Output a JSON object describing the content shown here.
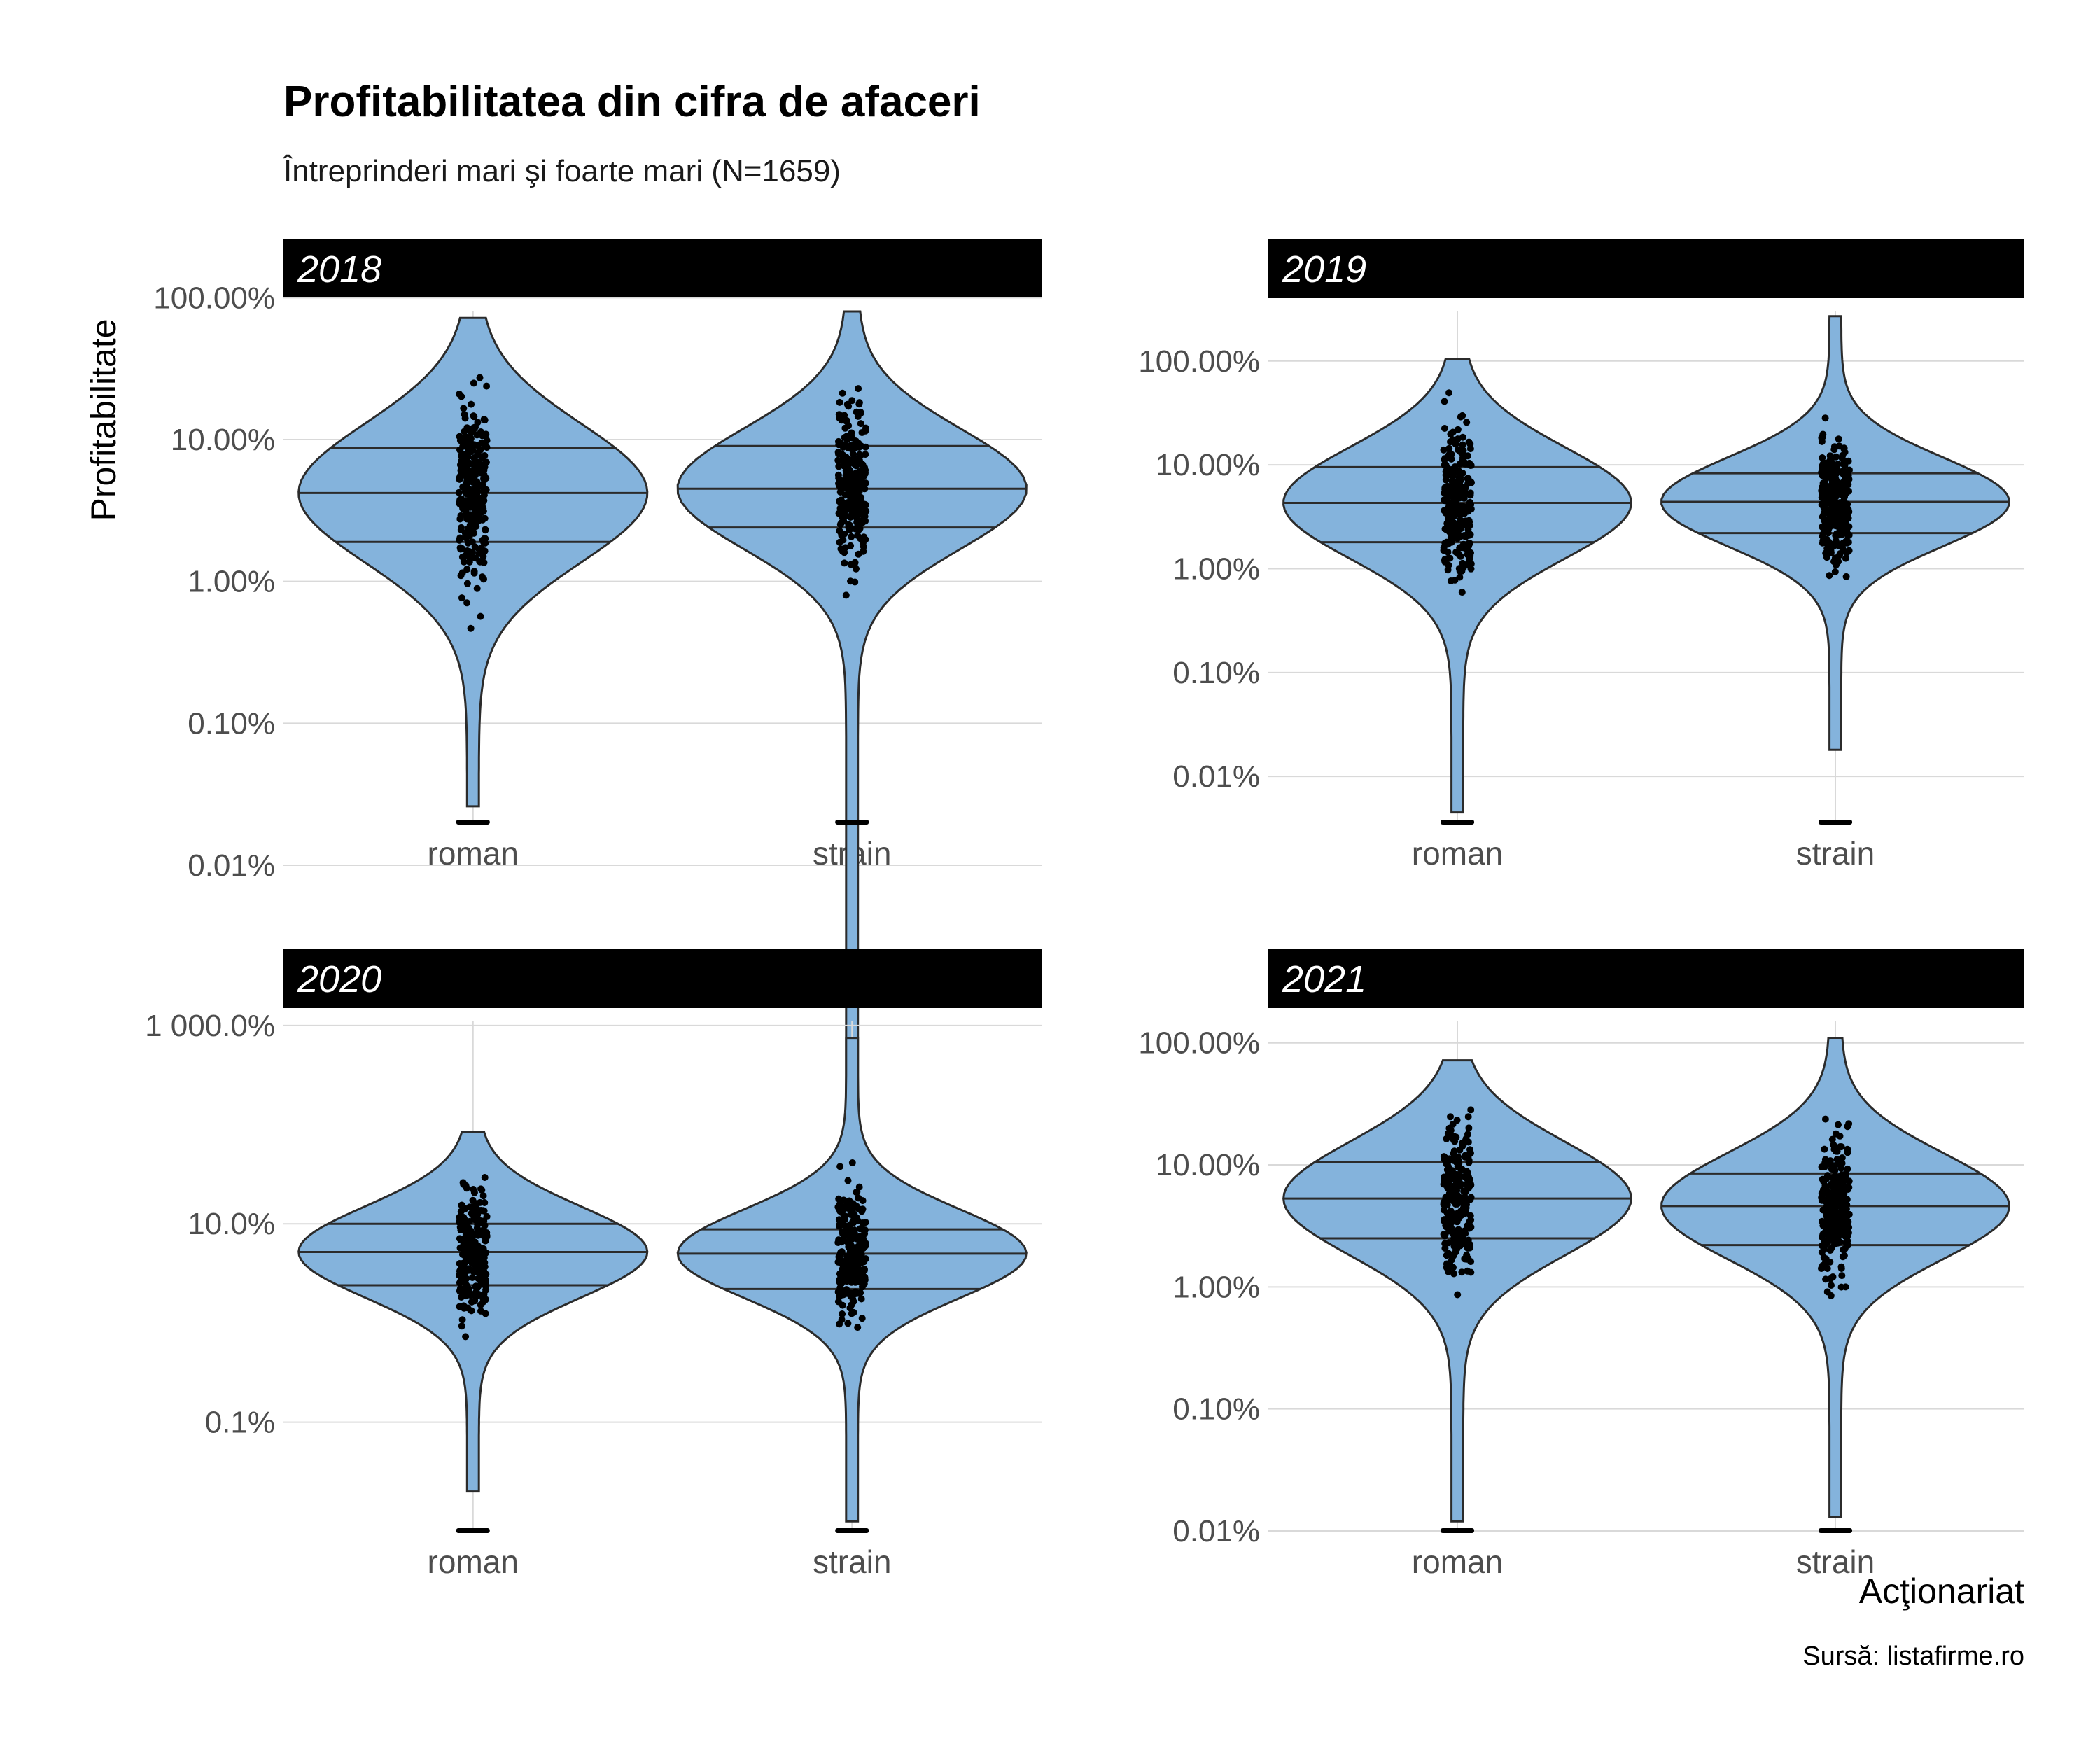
{
  "title": "Profitabilitatea din cifra de afaceri",
  "subtitle": "Întreprinderi mari şi foarte mari (N=1659)",
  "ylabel": "Profitabilitate",
  "xlabel": "Acţionariat",
  "caption": "Sursă: listafirme.ro",
  "colors": {
    "violin_fill": "#84b3dc",
    "violin_stroke": "#2b2b2b",
    "point": "#000000",
    "strip_bg": "#000000",
    "grid": "#d9d9d9"
  },
  "chart_data": [
    {
      "type": "violin",
      "facet": "2018",
      "y_scale": "log10",
      "ylim": [
        0.0002,
        0.8
      ],
      "ticks": [
        {
          "value": 1,
          "label": "100.00%"
        },
        {
          "value": 0.1,
          "label": "10.00%"
        },
        {
          "value": 0.01,
          "label": "1.00%"
        },
        {
          "value": 0.001,
          "label": "0.10%"
        },
        {
          "value": 0.0001,
          "label": "0.01%"
        }
      ],
      "categories": [
        "roman",
        "strain"
      ],
      "groups": [
        {
          "name": "roman",
          "quantiles": [
            0.019,
            0.042,
            0.087
          ],
          "min": 0.00026,
          "max": 0.72
        },
        {
          "name": "strain",
          "quantiles": [
            0.024,
            0.045,
            0.09
          ],
          "min": 2.5e-06,
          "max": 0.8
        }
      ]
    },
    {
      "type": "violin",
      "facet": "2019",
      "y_scale": "log10",
      "ylim": [
        3.6e-05,
        3
      ],
      "ticks": [
        {
          "value": 1,
          "label": "100.00%"
        },
        {
          "value": 0.1,
          "label": "10.00%"
        },
        {
          "value": 0.01,
          "label": "1.00%"
        },
        {
          "value": 0.001,
          "label": "0.10%"
        },
        {
          "value": 0.0001,
          "label": "0.01%"
        }
      ],
      "categories": [
        "roman",
        "strain"
      ],
      "groups": [
        {
          "name": "roman",
          "quantiles": [
            0.018,
            0.043,
            0.095
          ],
          "min": 4.5e-05,
          "max": 1.05
        },
        {
          "name": "strain",
          "quantiles": [
            0.022,
            0.044,
            0.083
          ],
          "min": 0.00018,
          "max": 2.7
        }
      ]
    },
    {
      "type": "violin",
      "facet": "2020",
      "y_scale": "log10",
      "ylim": [
        8e-05,
        11
      ],
      "ticks": [
        {
          "value": 10,
          "label": "1 000.0%"
        },
        {
          "value": 0.1,
          "label": "10.0%"
        },
        {
          "value": 0.001,
          "label": "0.1%"
        }
      ],
      "categories": [
        "roman",
        "strain"
      ],
      "groups": [
        {
          "name": "roman",
          "quantiles": [
            0.024,
            0.052,
            0.1
          ],
          "min": 0.0002,
          "max": 0.85
        },
        {
          "name": "strain",
          "quantiles": [
            0.022,
            0.05,
            0.088
          ],
          "min": 0.0001,
          "max": 7.5
        }
      ]
    },
    {
      "type": "violin",
      "facet": "2021",
      "y_scale": "log10",
      "ylim": [
        0.0001,
        1.5
      ],
      "ticks": [
        {
          "value": 1,
          "label": "100.00%"
        },
        {
          "value": 0.1,
          "label": "10.00%"
        },
        {
          "value": 0.01,
          "label": "1.00%"
        },
        {
          "value": 0.001,
          "label": "0.10%"
        },
        {
          "value": 0.0001,
          "label": "0.01%"
        }
      ],
      "categories": [
        "roman",
        "strain"
      ],
      "groups": [
        {
          "name": "roman",
          "quantiles": [
            0.025,
            0.053,
            0.106
          ],
          "min": 0.00012,
          "max": 0.72
        },
        {
          "name": "strain",
          "quantiles": [
            0.022,
            0.046,
            0.085
          ],
          "min": 0.00013,
          "max": 1.1
        }
      ]
    }
  ]
}
